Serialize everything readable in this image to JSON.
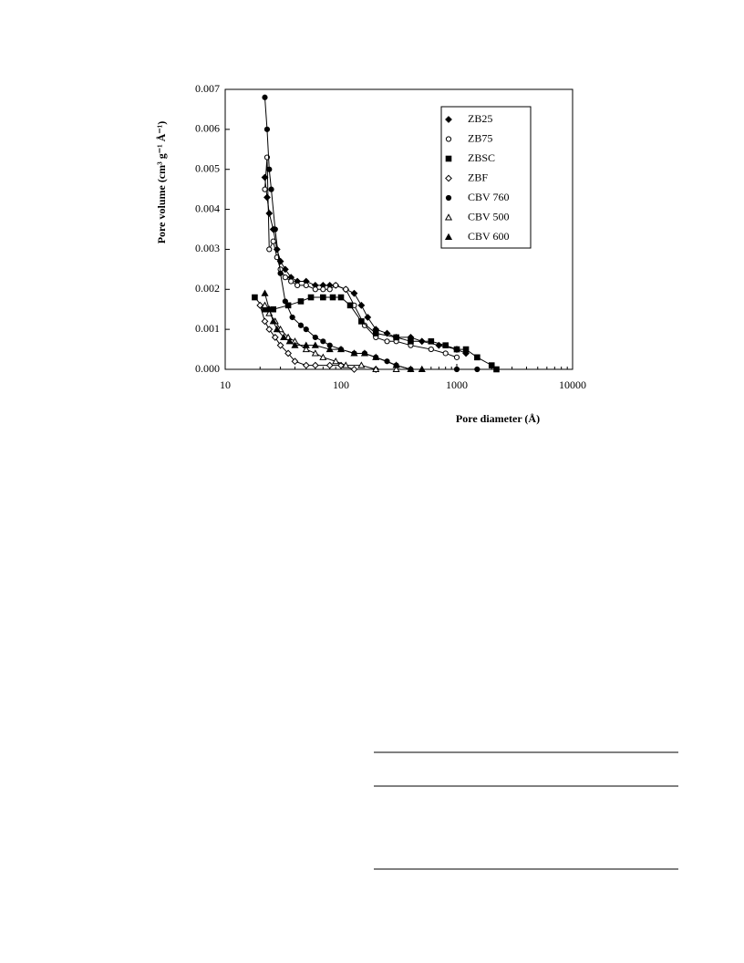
{
  "chart_data": {
    "type": "line",
    "xscale": "log",
    "xlabel": "Pore diameter (Å)",
    "ylabel": "Pore volume (cm³ g⁻¹ Å⁻¹)",
    "xlim": [
      10,
      10000
    ],
    "xticks": [
      10,
      100,
      1000,
      10000
    ],
    "ylim": [
      0,
      0.007
    ],
    "yticks": [
      {
        "value": 0,
        "label": "0.000"
      },
      {
        "value": 0.001,
        "label": "0.001"
      },
      {
        "value": 0.002,
        "label": "0.002"
      },
      {
        "value": 0.003,
        "label": "0.003"
      },
      {
        "value": 0.004,
        "label": "0.004"
      },
      {
        "value": 0.005,
        "label": "0.005"
      },
      {
        "value": 0.006,
        "label": "0.006"
      },
      {
        "value": 0.007,
        "label": "0.007"
      }
    ],
    "legend": "upper right",
    "series": [
      {
        "name": "ZB25",
        "color": "#000",
        "marker": "diamond-filled",
        "x": [
          22,
          23,
          24,
          26,
          28,
          30,
          33,
          37,
          42,
          50,
          60,
          70,
          80,
          90,
          110,
          130,
          150,
          170,
          200,
          250,
          300,
          400,
          500,
          700,
          1000,
          1200
        ],
        "values": [
          0.0048,
          0.0043,
          0.0039,
          0.0035,
          0.003,
          0.0027,
          0.0025,
          0.0023,
          0.0022,
          0.0022,
          0.0021,
          0.0021,
          0.0021,
          0.0021,
          0.002,
          0.0019,
          0.0016,
          0.0013,
          0.001,
          0.0009,
          0.0008,
          0.0008,
          0.0007,
          0.0006,
          0.0005,
          0.0004
        ]
      },
      {
        "name": "ZB75",
        "color": "#000",
        "marker": "circle-open",
        "x": [
          22,
          23,
          24,
          26,
          28,
          30,
          33,
          37,
          42,
          50,
          60,
          70,
          80,
          90,
          110,
          130,
          160,
          200,
          250,
          300,
          400,
          600,
          800,
          1000
        ],
        "values": [
          0.0045,
          0.0053,
          0.003,
          0.0032,
          0.0028,
          0.0025,
          0.0023,
          0.0022,
          0.0021,
          0.0021,
          0.002,
          0.002,
          0.002,
          0.0021,
          0.002,
          0.0016,
          0.0011,
          0.0008,
          0.0007,
          0.0007,
          0.0006,
          0.0005,
          0.0004,
          0.0003
        ]
      },
      {
        "name": "ZBSC",
        "color": "#000",
        "marker": "square-filled",
        "x": [
          18,
          22,
          26,
          35,
          45,
          55,
          70,
          85,
          100,
          120,
          150,
          200,
          300,
          400,
          600,
          800,
          1000,
          1200,
          1500,
          2000,
          2200
        ],
        "values": [
          0.0018,
          0.0015,
          0.0015,
          0.0016,
          0.0017,
          0.0018,
          0.0018,
          0.0018,
          0.0018,
          0.0016,
          0.0012,
          0.0009,
          0.0008,
          0.0007,
          0.0007,
          0.0006,
          0.0005,
          0.0005,
          0.0003,
          0.0001,
          0
        ]
      },
      {
        "name": "ZBF",
        "color": "#000",
        "marker": "diamond-open",
        "x": [
          20,
          22,
          24,
          27,
          30,
          35,
          40,
          50,
          60,
          80,
          100,
          130,
          200
        ],
        "values": [
          0.0016,
          0.0012,
          0.001,
          0.0008,
          0.0006,
          0.0004,
          0.0002,
          0.0001,
          0.0001,
          0.0001,
          0.0001,
          0,
          0
        ]
      },
      {
        "name": "CBV 760",
        "color": "#000",
        "marker": "circle-filled",
        "x": [
          22,
          23,
          24,
          25,
          27,
          30,
          33,
          38,
          45,
          50,
          60,
          70,
          80,
          100,
          130,
          160,
          200,
          250,
          300,
          400,
          1000,
          1500
        ],
        "values": [
          0.0068,
          0.006,
          0.005,
          0.0045,
          0.0035,
          0.0024,
          0.0017,
          0.0013,
          0.0011,
          0.001,
          0.0008,
          0.0007,
          0.0006,
          0.0005,
          0.0004,
          0.0004,
          0.0003,
          0.0002,
          0.0001,
          0,
          0,
          0
        ]
      },
      {
        "name": "CBV 500",
        "color": "#000",
        "marker": "triangle-open",
        "x": [
          22,
          24,
          27,
          30,
          35,
          40,
          50,
          60,
          70,
          90,
          110,
          150,
          200,
          300
        ],
        "values": [
          0.0016,
          0.0014,
          0.0012,
          0.001,
          0.0008,
          0.0007,
          0.0005,
          0.0004,
          0.0003,
          0.0002,
          0.0001,
          0.0001,
          0,
          0
        ]
      },
      {
        "name": "CBV 600",
        "color": "#000",
        "marker": "triangle-filled",
        "x": [
          22,
          24,
          26,
          28,
          32,
          36,
          40,
          50,
          60,
          80,
          100,
          130,
          160,
          200,
          300,
          400,
          500
        ],
        "values": [
          0.0019,
          0.0015,
          0.0012,
          0.001,
          0.0008,
          0.0007,
          0.0006,
          0.0006,
          0.0006,
          0.0005,
          0.0005,
          0.0004,
          0.0004,
          0.0003,
          0.0001,
          0,
          0
        ]
      }
    ]
  }
}
